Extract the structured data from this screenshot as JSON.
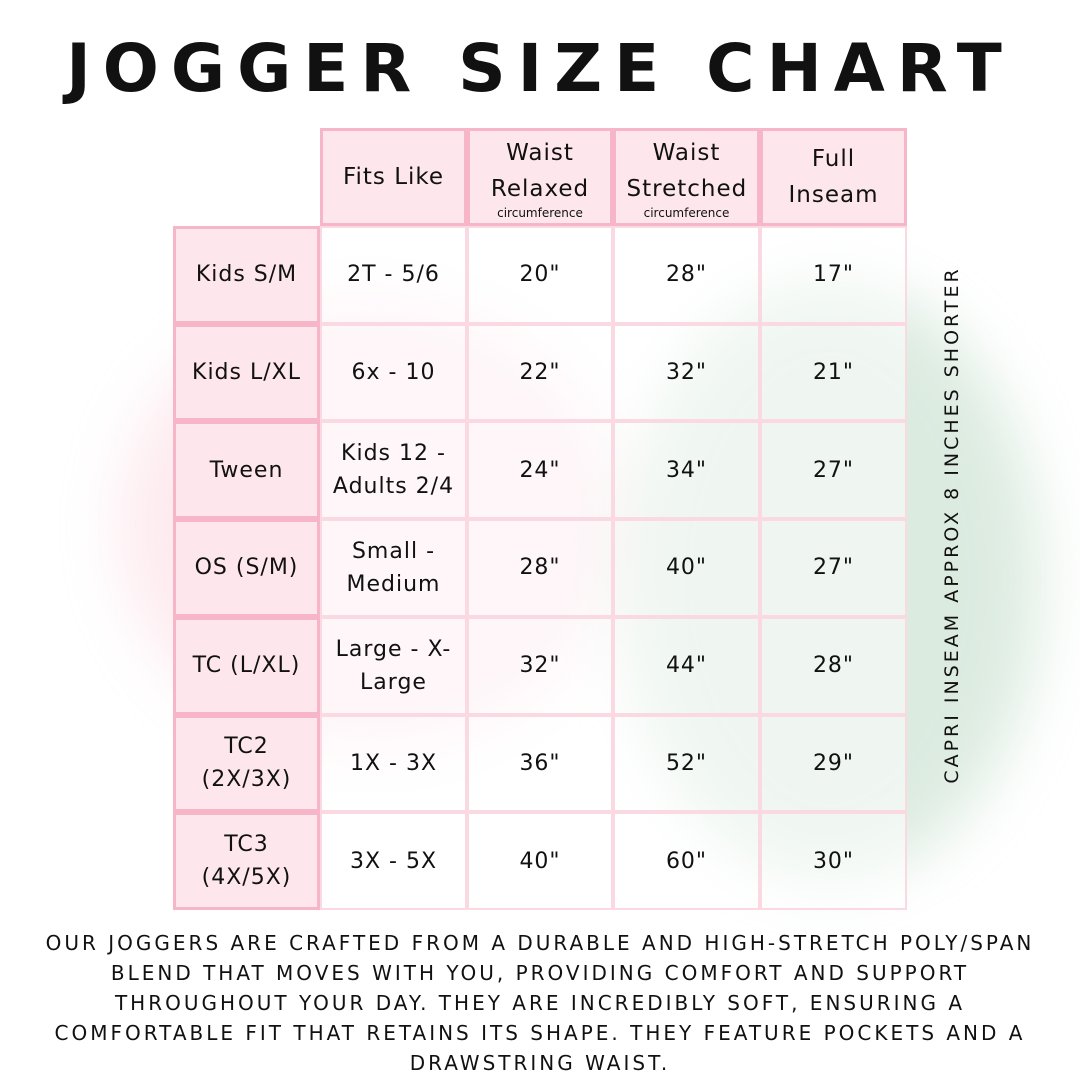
{
  "title": "JOGGER SIZE CHART",
  "side_note": "CAPRI INSEAM APPROX 8 INCHES SHORTER",
  "description": "Our joggers are crafted from a durable and high-stretch poly/span blend that moves with you, providing comfort and support throughout your day. They are incredibly soft, ensuring a comfortable fit that retains its shape. They feature pockets and a drawstring waist.",
  "colors": {
    "header_fill": "#fde6ec",
    "border": "#f7b6c8"
  },
  "chart_data": {
    "type": "table",
    "columns": [
      {
        "label": "Fits Like",
        "sub": ""
      },
      {
        "label": "Waist Relaxed",
        "sub": "circumference"
      },
      {
        "label": "Waist Stretched",
        "sub": "circumference"
      },
      {
        "label": "Full Inseam",
        "sub": ""
      }
    ],
    "rows": [
      {
        "size": "Kids S/M",
        "values": [
          "2T - 5/6",
          "20\"",
          "28\"",
          "17\""
        ]
      },
      {
        "size": "Kids L/XL",
        "values": [
          "6x - 10",
          "22\"",
          "32\"",
          "21\""
        ]
      },
      {
        "size": "Tween",
        "values": [
          "Kids 12 - Adults 2/4",
          "24\"",
          "34\"",
          "27\""
        ]
      },
      {
        "size": "OS (S/M)",
        "values": [
          "Small - Medium",
          "28\"",
          "40\"",
          "27\""
        ]
      },
      {
        "size": "TC (L/XL)",
        "values": [
          "Large - X-Large",
          "32\"",
          "44\"",
          "28\""
        ]
      },
      {
        "size": "TC2 (2X/3X)",
        "values": [
          "1X - 3X",
          "36\"",
          "52\"",
          "29\""
        ]
      },
      {
        "size": "TC3 (4X/5X)",
        "values": [
          "3X - 5X",
          "40\"",
          "60\"",
          "30\""
        ]
      }
    ]
  }
}
